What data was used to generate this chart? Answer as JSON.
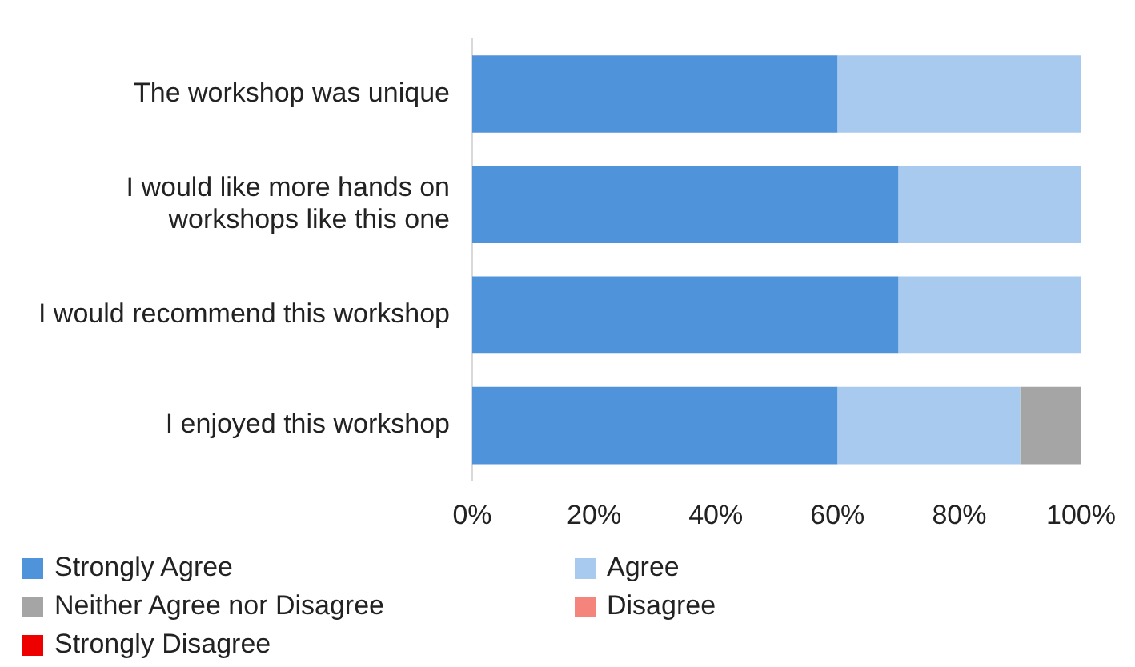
{
  "chart_data": {
    "type": "bar",
    "orientation": "horizontal",
    "stacked": true,
    "categories": [
      "The workshop was unique",
      "I would like more hands on workshops like this one",
      "I would recommend this workshop",
      "I enjoyed this workshop"
    ],
    "series": [
      {
        "name": "Strongly Agree",
        "color": "#4f94db",
        "values": [
          60,
          70,
          70,
          60
        ]
      },
      {
        "name": "Agree",
        "color": "#a8caee",
        "values": [
          40,
          30,
          30,
          30
        ]
      },
      {
        "name": "Neither Agree nor Disagree",
        "color": "#a5a5a5",
        "values": [
          0,
          0,
          0,
          10
        ]
      },
      {
        "name": "Disagree",
        "color": "#f4847c",
        "values": [
          0,
          0,
          0,
          0
        ]
      },
      {
        "name": "Strongly Disagree",
        "color": "#ee0000",
        "values": [
          0,
          0,
          0,
          0
        ]
      }
    ],
    "xlim": [
      0,
      100
    ],
    "xticks": [
      {
        "value": 0,
        "label": "0%"
      },
      {
        "value": 20,
        "label": "20%"
      },
      {
        "value": 40,
        "label": "40%"
      },
      {
        "value": 60,
        "label": "60%"
      },
      {
        "value": 80,
        "label": "80%"
      },
      {
        "value": 100,
        "label": "100%"
      }
    ],
    "grid": false,
    "legend": "bottom"
  }
}
